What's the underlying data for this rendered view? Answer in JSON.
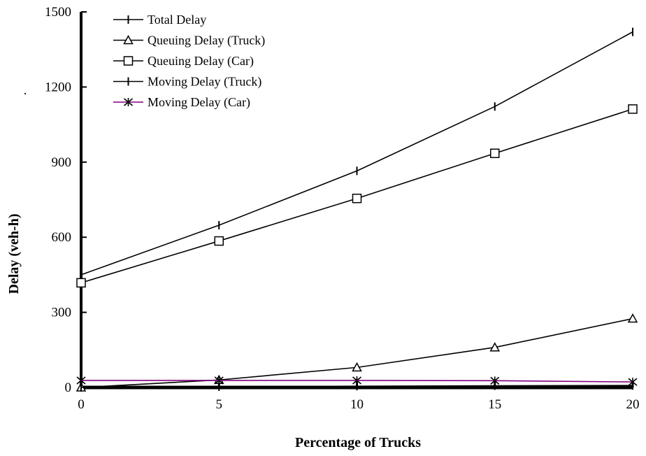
{
  "chart_data": {
    "type": "line",
    "title": "",
    "xlabel": "Percentage of Trucks",
    "ylabel": "Delay (veh-h)",
    "x": [
      0,
      5,
      10,
      15,
      20
    ],
    "xlim": [
      0,
      20
    ],
    "ylim": [
      0,
      1500
    ],
    "x_ticks": [
      "0",
      "5",
      "10",
      "15",
      "20"
    ],
    "y_ticks": [
      "0",
      "300",
      "600",
      "900",
      "1200",
      "1500"
    ],
    "legend_position": "top-left",
    "grid": false,
    "stray_mark": ".",
    "series": [
      {
        "name": "Total Delay",
        "marker": "vbar",
        "color": "#000000",
        "values": [
          450,
          648,
          865,
          1122,
          1420
        ]
      },
      {
        "name": "Queuing Delay (Truck)",
        "marker": "triangle",
        "color": "#000000",
        "values": [
          0,
          30,
          80,
          160,
          275
        ]
      },
      {
        "name": "Queuing Delay (Car)",
        "marker": "square",
        "color": "#000000",
        "values": [
          418,
          585,
          755,
          935,
          1112
        ]
      },
      {
        "name": "Moving Delay (Truck)",
        "marker": "vbar",
        "color": "#000000",
        "values": [
          0,
          3,
          5,
          7,
          8
        ]
      },
      {
        "name": "Moving Delay (Car)",
        "marker": "asterisk",
        "color": "#800080",
        "values": [
          28,
          28,
          28,
          27,
          22
        ]
      }
    ]
  }
}
